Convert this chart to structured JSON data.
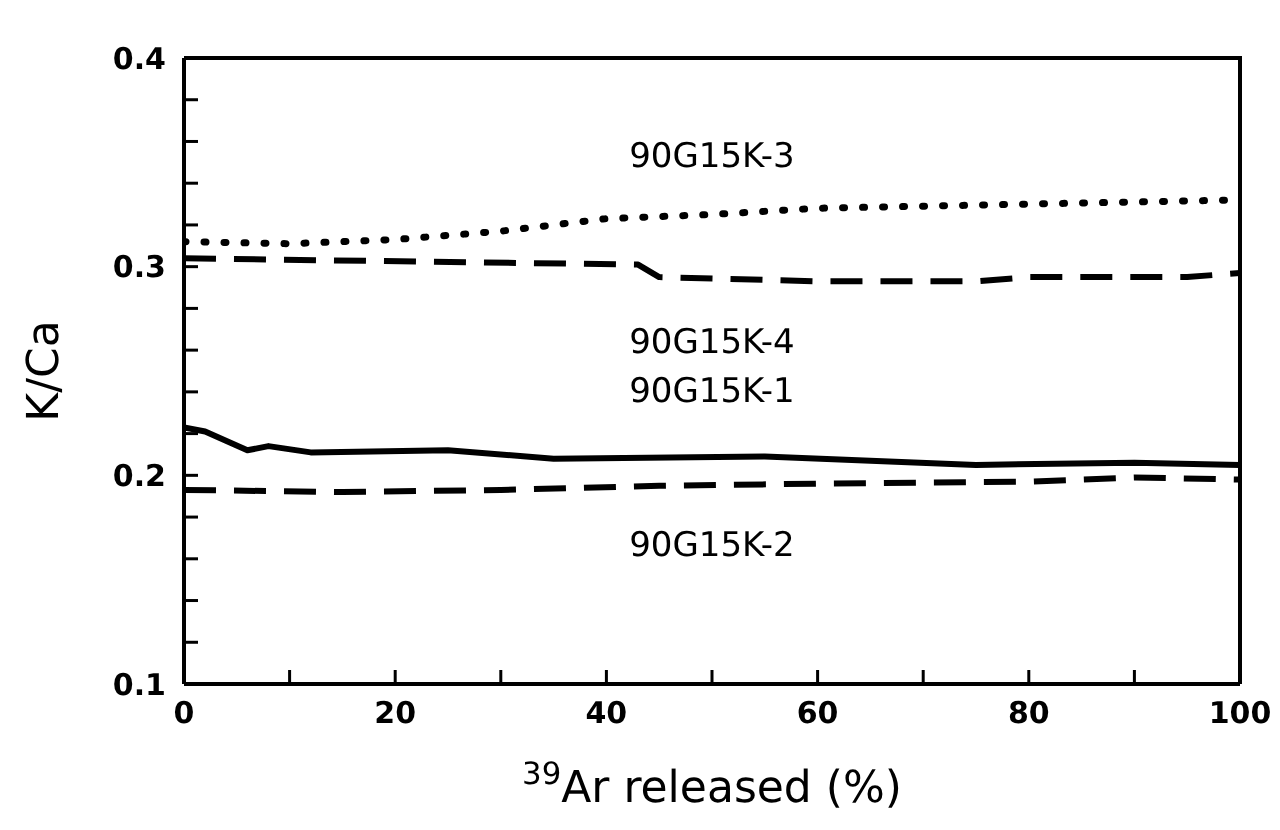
{
  "chart_data": {
    "type": "line",
    "xlabel": "$^{39}$Ar released (%)",
    "ylabel": "K/Ca",
    "xlim": [
      0,
      100
    ],
    "xticks": [
      0,
      {
        "value": 10,
        "label": null
      },
      20,
      {
        "value": 30,
        "label": null
      },
      40,
      {
        "value": 50,
        "label": null
      },
      60,
      {
        "value": 70,
        "label": null
      },
      80,
      {
        "value": 90,
        "label": null
      },
      100
    ],
    "ylim": [
      0.1,
      0.4
    ],
    "yticks": [
      0.1,
      {
        "value": 0.12,
        "label": null
      },
      {
        "value": 0.14,
        "label": null
      },
      {
        "value": 0.16,
        "label": null
      },
      {
        "value": 0.18,
        "label": null
      },
      0.2,
      {
        "value": 0.22,
        "label": null
      },
      {
        "value": 0.24,
        "label": null
      },
      {
        "value": 0.26,
        "label": null
      },
      {
        "value": 0.28,
        "label": null
      },
      0.3,
      {
        "value": 0.32,
        "label": null
      },
      {
        "value": 0.34,
        "label": null
      },
      {
        "value": 0.36,
        "label": null
      },
      {
        "value": 0.38,
        "label": null
      },
      0.4
    ],
    "marker": "none",
    "series": [
      {
        "name": "90G15K-3",
        "color": "#000000",
        "line_style": "dotted",
        "x": [
          0,
          10,
          20,
          30,
          40,
          50,
          60,
          70,
          80,
          90,
          100
        ],
        "values": [
          0.312,
          0.311,
          0.313,
          0.317,
          0.323,
          0.325,
          0.328,
          0.329,
          0.33,
          0.331,
          0.332
        ]
      },
      {
        "name": "90G15K-4",
        "color": "#000000",
        "line_style": "dashed",
        "x": [
          0,
          43,
          45,
          60,
          75,
          80,
          95,
          100
        ],
        "values": [
          0.304,
          0.301,
          0.295,
          0.293,
          0.293,
          0.295,
          0.295,
          0.297
        ]
      },
      {
        "name": "90G15K-1",
        "color": "#000000",
        "line_style": "solid",
        "x": [
          0,
          2,
          6,
          8,
          12,
          25,
          35,
          55,
          75,
          90,
          100
        ],
        "values": [
          0.223,
          0.221,
          0.212,
          0.214,
          0.211,
          0.212,
          0.208,
          0.209,
          0.205,
          0.206,
          0.205
        ]
      },
      {
        "name": "90G15K-2",
        "color": "#000000",
        "line_style": "dashed",
        "x": [
          0,
          15,
          30,
          45,
          60,
          80,
          90,
          100
        ],
        "values": [
          0.193,
          0.192,
          0.193,
          0.195,
          0.196,
          0.197,
          0.199,
          0.198
        ]
      }
    ]
  }
}
